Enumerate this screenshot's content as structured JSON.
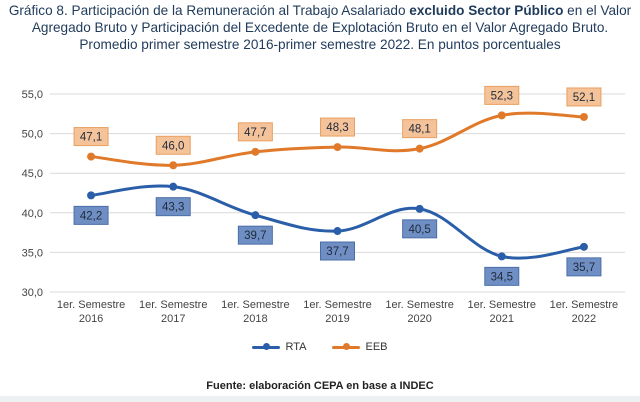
{
  "title": {
    "line1_pre": "Gráfico 8. Participación de la Remuneración al Trabajo Asalariado ",
    "line1_bold": "excluido Sector Público",
    "line1_post": " en el Valor",
    "line2": "Agregado Bruto y Participación del Excedente de Explotación Bruto en el Valor Agregado Bruto.",
    "line3": "Promedio primer semestre 2016-primer semestre 2022. En puntos porcentuales"
  },
  "source": "Fuente: elaboración CEPA en base a INDEC",
  "chart_data": {
    "type": "line",
    "categories": [
      [
        "1er. Semestre",
        "2016"
      ],
      [
        "1er. Semestre",
        "2017"
      ],
      [
        "1er. Semestre",
        "2018"
      ],
      [
        "1er. Semestre",
        "2019"
      ],
      [
        "1er. Semestre",
        "2020"
      ],
      [
        "1er. Semestre",
        "2021"
      ],
      [
        "1er. Semestre",
        "2022"
      ]
    ],
    "ylim": [
      30,
      55
    ],
    "yticks": [
      30,
      35,
      40,
      45,
      50,
      55
    ],
    "ytick_labels": [
      "30,0",
      "35,0",
      "40,0",
      "45,0",
      "50,0",
      "55,0"
    ],
    "grid": true,
    "legend_position": "bottom",
    "series": [
      {
        "name": "RTA",
        "color": "#2a5ea8",
        "label_bg": "#6f8fc4",
        "label_border": "#4a6fa8",
        "label_position": "below",
        "values": [
          42.2,
          43.3,
          39.7,
          37.7,
          40.5,
          34.5,
          35.7
        ],
        "labels": [
          "42,2",
          "43,3",
          "39,7",
          "37,7",
          "40,5",
          "34,5",
          "35,7"
        ]
      },
      {
        "name": "EEB",
        "color": "#e07a2a",
        "label_bg": "#f5c39a",
        "label_border": "#e8a060",
        "label_position": "above",
        "values": [
          47.1,
          46.0,
          47.7,
          48.3,
          48.1,
          52.3,
          52.1
        ],
        "labels": [
          "47,1",
          "46,0",
          "47,7",
          "48,3",
          "48,1",
          "52,3",
          "52,1"
        ]
      }
    ]
  }
}
